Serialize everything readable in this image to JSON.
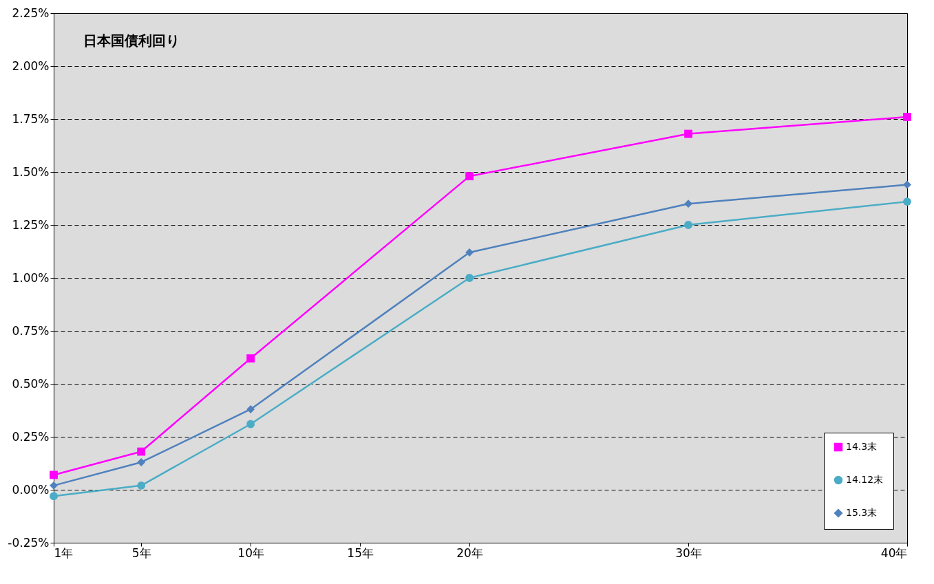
{
  "chart_data": {
    "type": "line",
    "title": "日本国債利回り",
    "x": [
      1,
      5,
      10,
      20,
      30,
      40
    ],
    "series": [
      {
        "name": "14.3末",
        "color": "#ff00ff",
        "marker": "square",
        "values": [
          0.07,
          0.18,
          0.62,
          1.48,
          1.68,
          1.76
        ]
      },
      {
        "name": "14.12末",
        "color": "#4bacc6",
        "marker": "circle",
        "values": [
          -0.03,
          0.02,
          0.31,
          1.0,
          1.25,
          1.36
        ]
      },
      {
        "name": "15.3末",
        "color": "#4f81bd",
        "marker": "diamond",
        "values": [
          0.02,
          0.13,
          0.38,
          1.12,
          1.35,
          1.44
        ]
      }
    ],
    "xlim": [
      1,
      40
    ],
    "xticks": [
      {
        "value": 1,
        "label": "1年"
      },
      {
        "value": 5,
        "label": "5年"
      },
      {
        "value": 10,
        "label": "10年"
      },
      {
        "value": 15,
        "label": "15年"
      },
      {
        "value": 20,
        "label": "20年"
      },
      {
        "value": 30,
        "label": "30年"
      },
      {
        "value": 40,
        "label": "40年"
      }
    ],
    "ylim": [
      -0.25,
      2.25
    ],
    "yticks": [
      {
        "value": -0.25,
        "label": "-0.25%"
      },
      {
        "value": 0,
        "label": "0.00%"
      },
      {
        "value": 0.25,
        "label": "0.25%"
      },
      {
        "value": 0.5,
        "label": "0.50%"
      },
      {
        "value": 0.75,
        "label": "0.75%"
      },
      {
        "value": 1,
        "label": "1.00%"
      },
      {
        "value": 1.25,
        "label": "1.25%"
      },
      {
        "value": 1.5,
        "label": "1.50%"
      },
      {
        "value": 1.75,
        "label": "1.75%"
      },
      {
        "value": 2,
        "label": "2.00%"
      },
      {
        "value": 2.25,
        "label": "2.25%"
      }
    ],
    "grid": "y",
    "line_style": "solid",
    "legend": "bottom right"
  }
}
